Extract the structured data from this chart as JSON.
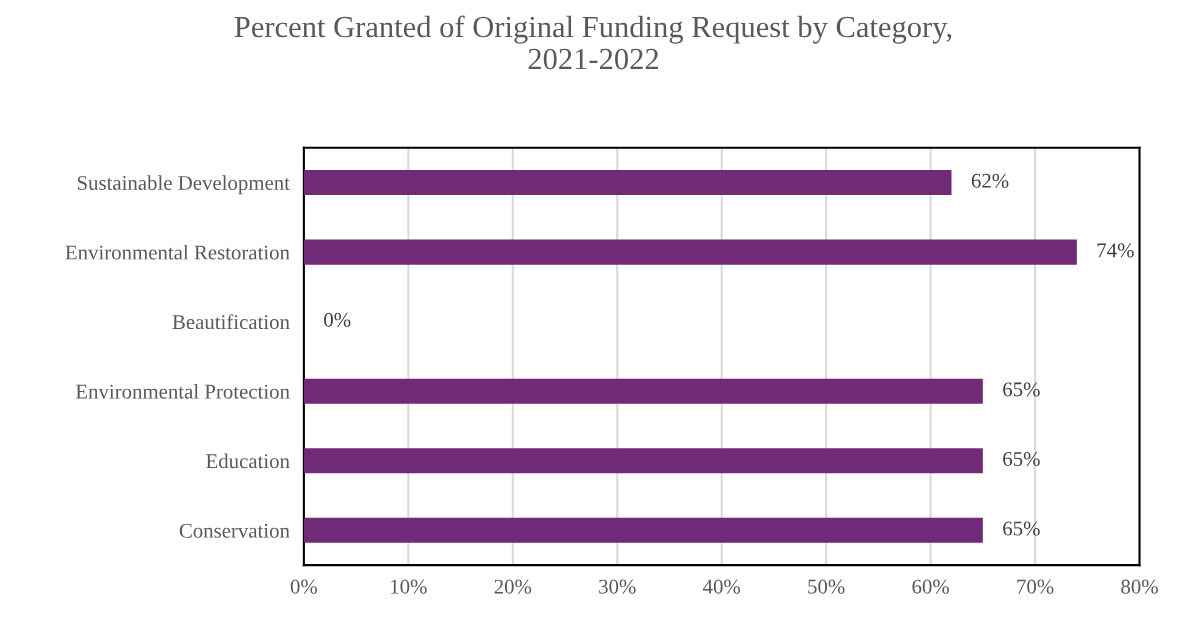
{
  "chart_data": {
    "type": "bar",
    "orientation": "horizontal",
    "title": "Percent Granted of Original Funding Request by Category,\n2021-2022",
    "categories": [
      "Sustainable Development",
      "Environmental Restoration",
      "Beautification",
      "Environmental Protection",
      "Education",
      "Conservation"
    ],
    "values": [
      62,
      74,
      0,
      65,
      65,
      65
    ],
    "value_labels": [
      "62%",
      "74%",
      "0%",
      "65%",
      "65%",
      "65%"
    ],
    "color": "#712a78",
    "xlim": [
      0,
      80
    ],
    "xticks": [
      {
        "value": 0,
        "label": "0%"
      },
      {
        "value": 10,
        "label": "10%"
      },
      {
        "value": 20,
        "label": "20%"
      },
      {
        "value": 30,
        "label": "30%"
      },
      {
        "value": 40,
        "label": "40%"
      },
      {
        "value": 50,
        "label": "50%"
      },
      {
        "value": 60,
        "label": "60%"
      },
      {
        "value": 70,
        "label": "70%"
      },
      {
        "value": 80,
        "label": "80%"
      }
    ],
    "grid": "x"
  }
}
